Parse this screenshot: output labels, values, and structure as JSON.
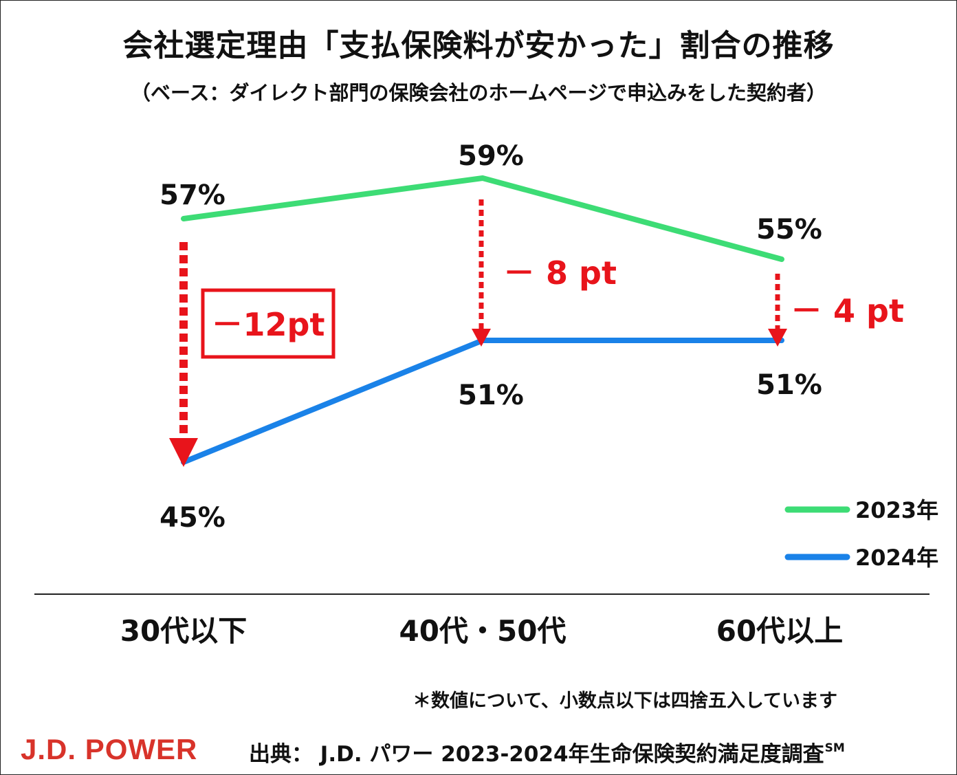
{
  "title": "会社選定理由「支払保険料が安かった」割合の推移",
  "subtitle": "（ベース：ダイレクト部門の保険会社のホームページで申込みをした契約者）",
  "colors": {
    "series_2023": "#3ddc75",
    "series_2024": "#1a82e8",
    "accent_red": "#e8141b",
    "text": "#111111",
    "brand": "#d8332a"
  },
  "chart_data": {
    "type": "line",
    "title": "会社選定理由「支払保険料が安かった」割合の推移",
    "categories": [
      "30代以下",
      "40代・50代",
      "60代以上"
    ],
    "series": [
      {
        "name": "2023年",
        "values": [
          57,
          59,
          55
        ],
        "labels": [
          "57%",
          "59%",
          "55%"
        ]
      },
      {
        "name": "2024年",
        "values": [
          45,
          51,
          51
        ],
        "labels": [
          "45%",
          "51%",
          "51%"
        ]
      }
    ],
    "differences": [
      "－12pt",
      "－ 8 pt",
      "－ 4 pt"
    ],
    "ylim": [
      40,
      62
    ],
    "xlabel": "",
    "ylabel": "",
    "legend": "bottom-right"
  },
  "footnote": "＊数値について、小数点以下は四捨五入しています",
  "brand": "J.D. POWER",
  "source": {
    "text": "出典：  J.D. パワー 2023-2024年生命保険契約満足度調査",
    "mark": "SM"
  }
}
